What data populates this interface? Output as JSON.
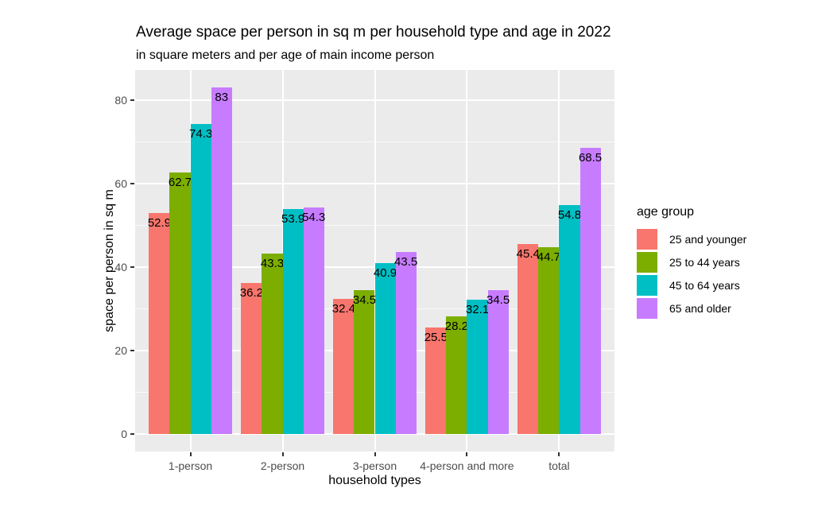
{
  "chart_data": {
    "type": "bar",
    "title": "Average space per person in sq m per household type and age in 2022",
    "subtitle": "in square meters and per age of main income person",
    "xlabel": "household types",
    "ylabel": "space per person in sq m",
    "legend_title": "age group",
    "legend_position": "right",
    "categories": [
      "1-person",
      "2-person",
      "3-person",
      "4-person and more",
      "total"
    ],
    "series": [
      {
        "name": "25 and younger",
        "color": "#F8766D",
        "values": [
          52.9,
          36.2,
          32.4,
          25.5,
          45.4
        ]
      },
      {
        "name": "25 to 44 years",
        "color": "#7CAE00",
        "values": [
          62.7,
          43.3,
          34.5,
          28.2,
          44.7
        ]
      },
      {
        "name": "45 to 64 years",
        "color": "#00BFC4",
        "values": [
          74.3,
          53.9,
          40.9,
          32.1,
          54.8
        ]
      },
      {
        "name": "65 and older",
        "color": "#C77CFF",
        "values": [
          83,
          54.3,
          43.5,
          34.5,
          68.5
        ]
      }
    ],
    "y_ticks": [
      0,
      20,
      40,
      60,
      80
    ],
    "y_minor_ticks": [
      10,
      30,
      50,
      70
    ],
    "ylim": [
      -4.15,
      87.15
    ],
    "grid": true,
    "panel_bg": "#EBEBEB",
    "grid_color": "#FFFFFF",
    "bar_label_color": "#000000",
    "tick_text_color": "#4D4D4D",
    "tick_mark_color": "#333333"
  }
}
